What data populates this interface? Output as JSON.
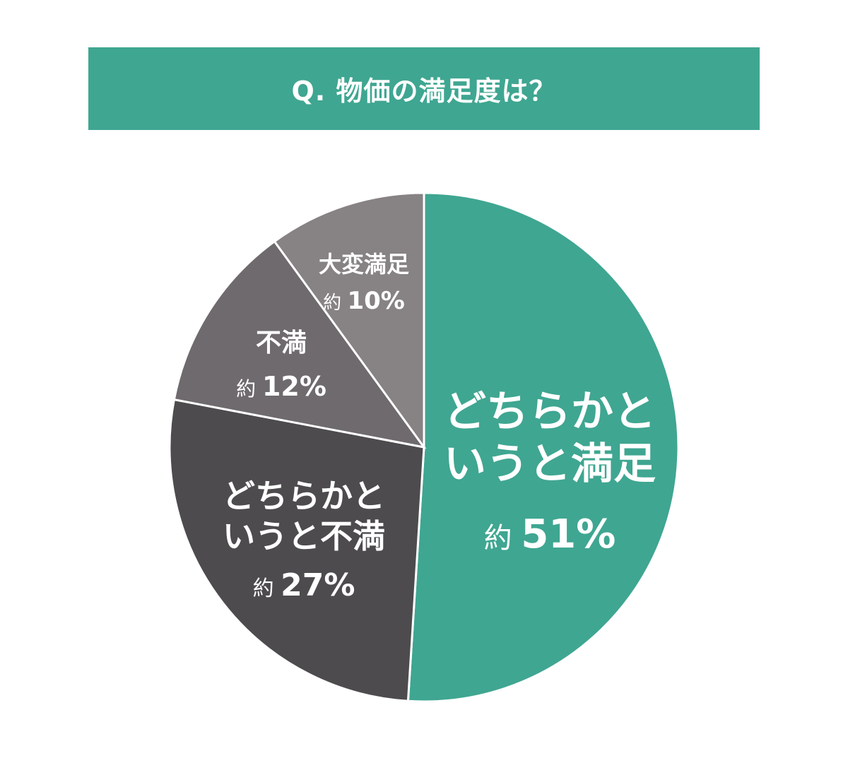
{
  "title": "Q. 物価の満足度は？",
  "colors": {
    "title_bg": "#3fa691",
    "title_text": "#ffffff",
    "slice_border": "#ffffff"
  },
  "chart_data": {
    "type": "pie",
    "slices": [
      {
        "label": [
          "どちらかと",
          "いうと満足"
        ],
        "prefix": "約",
        "value": 51,
        "percent_label": "51%",
        "color": "#3fa691"
      },
      {
        "label": [
          "どちらかと",
          "いうと不満"
        ],
        "prefix": "約",
        "value": 27,
        "percent_label": "27%",
        "color": "#4d4b4e"
      },
      {
        "label": [
          "不満"
        ],
        "prefix": "約",
        "value": 12,
        "percent_label": "12%",
        "color": "#6e6a6d"
      },
      {
        "label": [
          "大変満足"
        ],
        "prefix": "約",
        "value": 10,
        "percent_label": "10%",
        "color": "#878284"
      }
    ],
    "start_angle": "12 o'clock",
    "direction": "clockwise"
  }
}
